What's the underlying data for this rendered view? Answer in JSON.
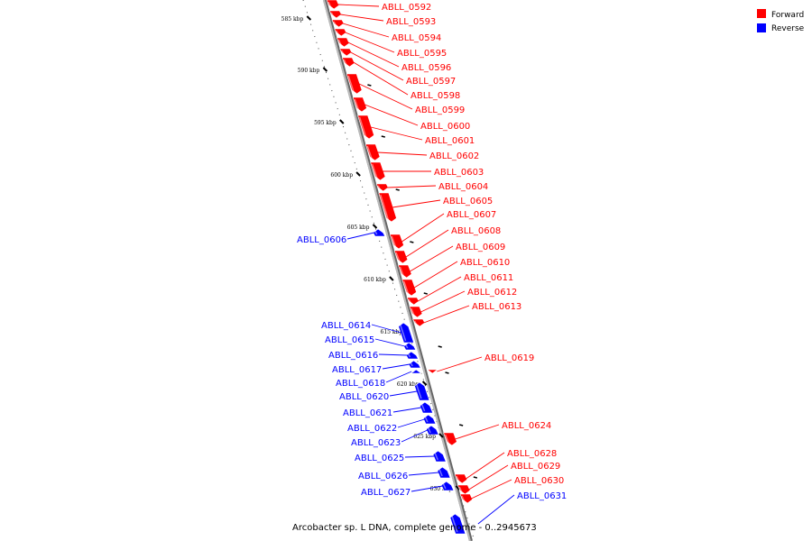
{
  "colors": {
    "forward": "#ff0000",
    "reverse": "#0000ff",
    "backbone": "#999999"
  },
  "legend": [
    {
      "label": "Forward",
      "color": "#ff0000"
    },
    {
      "label": "Reverse",
      "color": "#0000ff"
    }
  ],
  "caption": "Arcobacter sp. L DNA, complete genome - 0..2945673",
  "scale_ticks": [
    "585 kbp",
    "590 kbp",
    "595 kbp",
    "600 kbp",
    "605 kbp",
    "610 kbp",
    "615 kbp",
    "620 kbp",
    "625 kbp",
    "630 kbp"
  ],
  "genes": [
    {
      "name": "ABLL_0592",
      "strand": "forward"
    },
    {
      "name": "ABLL_0593",
      "strand": "forward"
    },
    {
      "name": "ABLL_0594",
      "strand": "forward"
    },
    {
      "name": "ABLL_0595",
      "strand": "forward"
    },
    {
      "name": "ABLL_0596",
      "strand": "forward"
    },
    {
      "name": "ABLL_0597",
      "strand": "forward"
    },
    {
      "name": "ABLL_0598",
      "strand": "forward"
    },
    {
      "name": "ABLL_0599",
      "strand": "forward"
    },
    {
      "name": "ABLL_0600",
      "strand": "forward"
    },
    {
      "name": "ABLL_0601",
      "strand": "forward"
    },
    {
      "name": "ABLL_0602",
      "strand": "forward"
    },
    {
      "name": "ABLL_0603",
      "strand": "forward"
    },
    {
      "name": "ABLL_0604",
      "strand": "forward"
    },
    {
      "name": "ABLL_0605",
      "strand": "forward"
    },
    {
      "name": "ABLL_0606",
      "strand": "reverse"
    },
    {
      "name": "ABLL_0607",
      "strand": "forward"
    },
    {
      "name": "ABLL_0608",
      "strand": "forward"
    },
    {
      "name": "ABLL_0609",
      "strand": "forward"
    },
    {
      "name": "ABLL_0610",
      "strand": "forward"
    },
    {
      "name": "ABLL_0611",
      "strand": "forward"
    },
    {
      "name": "ABLL_0612",
      "strand": "forward"
    },
    {
      "name": "ABLL_0613",
      "strand": "forward"
    },
    {
      "name": "ABLL_0614",
      "strand": "reverse"
    },
    {
      "name": "ABLL_0615",
      "strand": "reverse"
    },
    {
      "name": "ABLL_0616",
      "strand": "reverse"
    },
    {
      "name": "ABLL_0617",
      "strand": "reverse"
    },
    {
      "name": "ABLL_0618",
      "strand": "reverse"
    },
    {
      "name": "ABLL_0619",
      "strand": "forward"
    },
    {
      "name": "ABLL_0620",
      "strand": "reverse"
    },
    {
      "name": "ABLL_0621",
      "strand": "reverse"
    },
    {
      "name": "ABLL_0622",
      "strand": "reverse"
    },
    {
      "name": "ABLL_0623",
      "strand": "reverse"
    },
    {
      "name": "ABLL_0624",
      "strand": "forward"
    },
    {
      "name": "ABLL_0625",
      "strand": "reverse"
    },
    {
      "name": "ABLL_0626",
      "strand": "reverse"
    },
    {
      "name": "ABLL_0627",
      "strand": "reverse"
    },
    {
      "name": "ABLL_0628",
      "strand": "forward"
    },
    {
      "name": "ABLL_0629",
      "strand": "forward"
    },
    {
      "name": "ABLL_0630",
      "strand": "forward"
    },
    {
      "name": "ABLL_0631",
      "strand": "reverse"
    }
  ]
}
